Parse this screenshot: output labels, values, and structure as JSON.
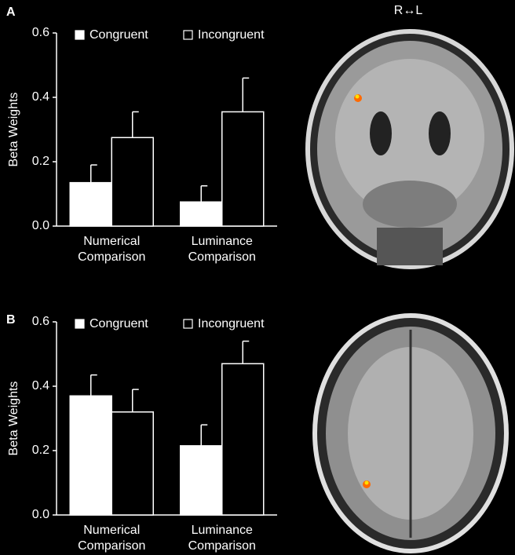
{
  "chart_data": [
    {
      "type": "bar",
      "panel_label": "A",
      "annotation": "R↔L",
      "ylabel": "Beta Weights",
      "categories": [
        "Numerical Comparison",
        "Luminance Comparison"
      ],
      "series": [
        {
          "name": "Congruent",
          "color": "#ffffff",
          "edgecolor": "#ffffff",
          "values": [
            0.135,
            0.075
          ],
          "errors": [
            0.055,
            0.05
          ]
        },
        {
          "name": "Incongruent",
          "color": "#000000",
          "edgecolor": "#ffffff",
          "values": [
            0.275,
            0.355
          ],
          "errors": [
            0.08,
            0.105
          ]
        }
      ],
      "ylim": [
        0,
        0.6
      ],
      "yticks": [
        {
          "value": 0,
          "label": "0.0"
        },
        0.2,
        0.4,
        0.6
      ]
    },
    {
      "type": "bar",
      "panel_label": "B",
      "ylabel": "Beta Weights",
      "categories": [
        "Numerical Comparison",
        "Luminance Comparison"
      ],
      "series": [
        {
          "name": "Congruent",
          "color": "#ffffff",
          "edgecolor": "#ffffff",
          "values": [
            0.37,
            0.215
          ],
          "errors": [
            0.065,
            0.065
          ]
        },
        {
          "name": "Incongruent",
          "color": "#000000",
          "edgecolor": "#ffffff",
          "values": [
            0.32,
            0.47
          ],
          "errors": [
            0.07,
            0.07
          ]
        }
      ],
      "ylim": [
        0,
        0.6
      ],
      "yticks": [
        {
          "value": 0,
          "label": "0.0"
        },
        0.2,
        0.4,
        0.6
      ]
    }
  ]
}
